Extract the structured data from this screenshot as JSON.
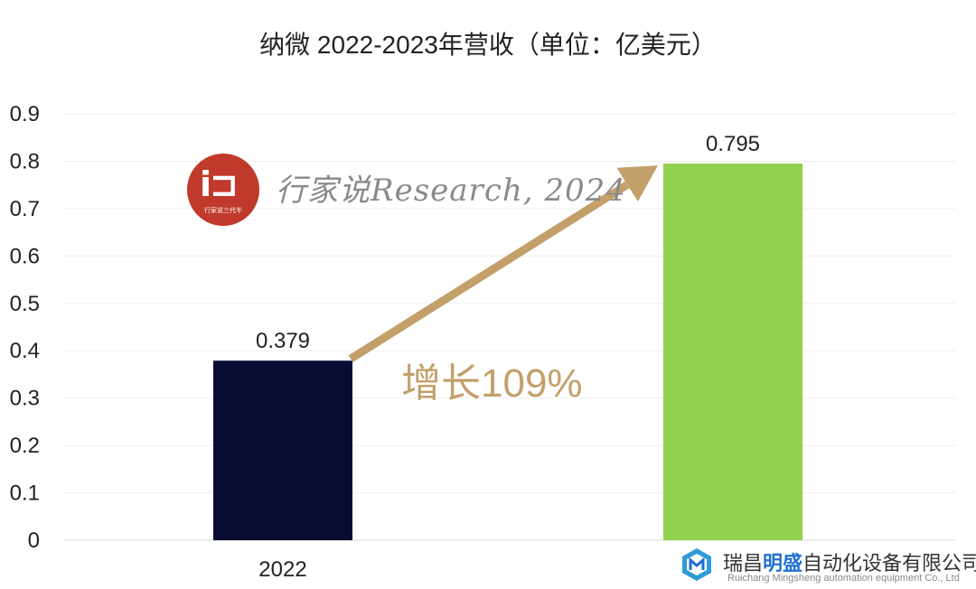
{
  "chart_data": {
    "type": "bar",
    "title": "纳微 2022-2023年营收（单位：亿美元）",
    "categories": [
      "2022",
      ""
    ],
    "values": [
      0.379,
      0.795
    ],
    "data_labels": [
      "0.379",
      "0.795"
    ],
    "bar_colors": [
      "#0a0c33",
      "#92d050"
    ],
    "ylim": [
      0,
      0.9
    ],
    "yticks": [
      "0",
      "0.1",
      "0.2",
      "0.3",
      "0.4",
      "0.5",
      "0.6",
      "0.7",
      "0.8",
      "0.9"
    ],
    "grid": true,
    "annotation": {
      "text": "增长109%",
      "color": "#c3a06a"
    }
  },
  "watermark": {
    "logo_text": "i⊐",
    "logo_subtext": "行家说三代半",
    "text": "行家说Research, 2024"
  },
  "company": {
    "name_prefix": "瑞昌",
    "name_highlight": "明盛",
    "name_suffix": "自动化设备有限公司",
    "name_en": "Ruichang Mingsheng automation equipment Co., Ltd",
    "logo_icon": "hexagon-m-icon"
  }
}
